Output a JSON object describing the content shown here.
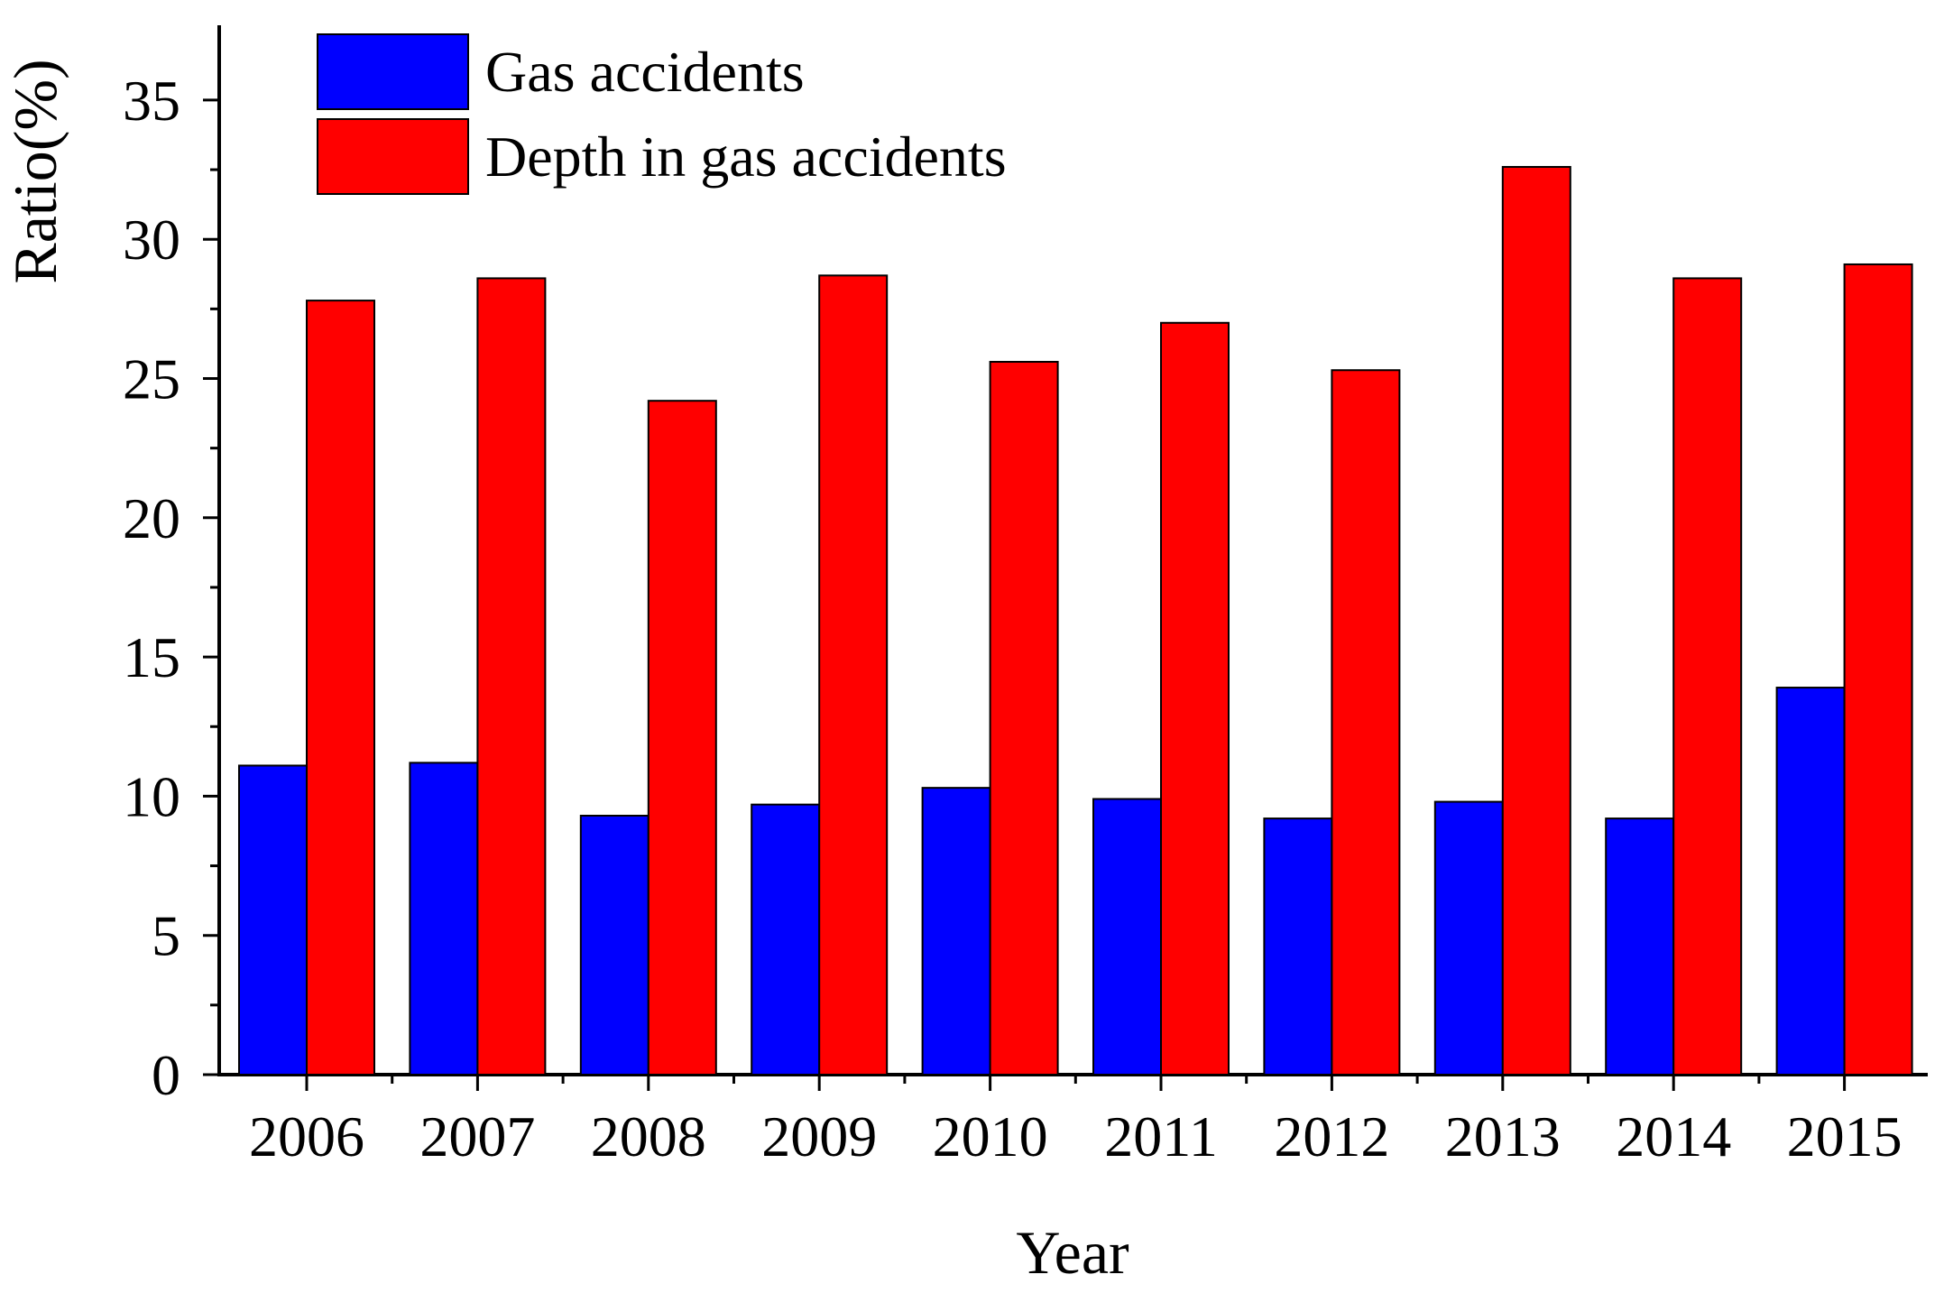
{
  "chart_data": {
    "type": "bar",
    "title": "",
    "xlabel": "Year",
    "ylabel": "Ratio(%)",
    "ylim": [
      0,
      37.5
    ],
    "yticks": [
      0,
      5,
      10,
      15,
      20,
      25,
      30,
      35
    ],
    "categories": [
      "2006",
      "2007",
      "2008",
      "2009",
      "2010",
      "2011",
      "2012",
      "2013",
      "2014",
      "2015"
    ],
    "series": [
      {
        "name": "Gas accidents",
        "color": "#0000ff",
        "values": [
          11.1,
          11.2,
          9.3,
          9.7,
          10.3,
          9.9,
          9.2,
          9.8,
          9.2,
          13.9
        ]
      },
      {
        "name": "Depth in gas accidents",
        "color": "#ff0000",
        "values": [
          27.8,
          28.6,
          24.2,
          28.7,
          25.6,
          27.0,
          25.3,
          32.6,
          28.6,
          29.1
        ]
      }
    ],
    "legend_position": "top-left",
    "grid": false
  }
}
